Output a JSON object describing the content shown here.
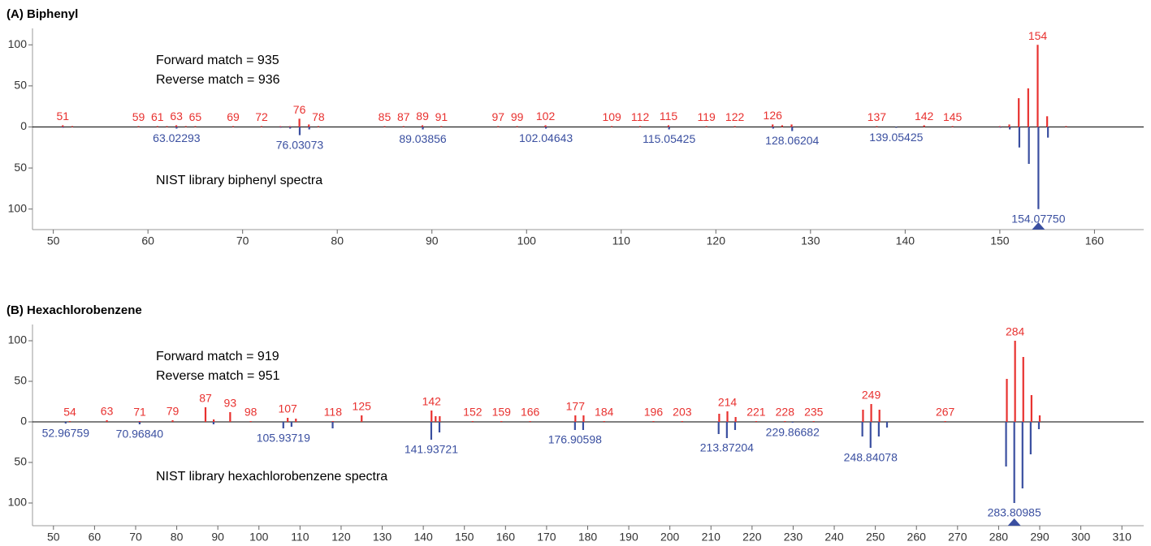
{
  "chart_data": [
    {
      "type": "mirror",
      "title": "(A) Biphenyl",
      "annotations": [
        "Forward match = 935",
        "Reverse match = 936",
        "NIST library biphenyl spectra"
      ],
      "xlim": [
        47.8,
        165.2
      ],
      "xticks": [
        50,
        60,
        70,
        80,
        90,
        100,
        110,
        120,
        130,
        140,
        150,
        160
      ],
      "ylim": [
        -125,
        120
      ],
      "yticks": [
        {
          "value": -100,
          "label": "100"
        },
        {
          "value": -50,
          "label": "50"
        },
        0,
        50,
        100
      ],
      "series": [
        {
          "color": "#e8312f",
          "x": [
            51,
            52,
            59,
            61,
            62,
            63,
            64,
            65,
            69,
            72,
            74,
            75,
            76,
            77,
            78,
            85,
            87,
            89,
            91,
            97,
            99,
            102,
            109,
            112,
            115,
            119,
            122,
            126,
            127,
            128,
            137,
            142,
            145,
            150,
            151,
            152,
            153,
            154,
            155,
            157
          ],
          "values": [
            2,
            1,
            1,
            1,
            1,
            2,
            1,
            1,
            1,
            1,
            1,
            1,
            10,
            3,
            1,
            1,
            1,
            2,
            1,
            1,
            1,
            2,
            1,
            1,
            2,
            1,
            1,
            3,
            2,
            3,
            1,
            2,
            1,
            1,
            3,
            35,
            47,
            100,
            13,
            1
          ],
          "labels": [
            "51",
            null,
            "59",
            "61",
            null,
            "63",
            null,
            "65",
            "69",
            "72",
            null,
            null,
            "76",
            null,
            "78",
            "85",
            "87",
            "89",
            "91",
            "97",
            "99",
            "102",
            "109",
            "112",
            "115",
            "119",
            "122",
            "126",
            null,
            null,
            "137",
            "142",
            "145",
            null,
            null,
            null,
            null,
            "154",
            null,
            null
          ]
        },
        {
          "color": "#3a4fa0",
          "x": [
            51.0229,
            63.02293,
            74.0151,
            75.0229,
            76.03073,
            77.0386,
            89.03856,
            102.04643,
            115.05425,
            126.0464,
            128.06204,
            139.05425,
            150.0464,
            151.0542,
            152.062,
            153.0699,
            154.0775,
            155.0853
          ],
          "values": [
            -1,
            -2,
            -1,
            -2,
            -10,
            -3,
            -3,
            -2,
            -3,
            -2,
            -5,
            -1,
            -1,
            -3,
            -25,
            -45,
            -100,
            -13
          ],
          "labels": [
            null,
            "63.02293",
            null,
            null,
            "76.03073",
            null,
            "89.03856",
            "102.04643",
            "115.05425",
            null,
            "128.06204",
            "139.05425",
            null,
            null,
            null,
            null,
            "154.07750",
            null
          ]
        }
      ]
    },
    {
      "type": "mirror",
      "title": "(B) Hexachlorobenzene",
      "annotations": [
        "Forward match = 919",
        "Reverse match = 951",
        "NIST library hexachlorobenzene spectra"
      ],
      "xlim": [
        44.9,
        315.3
      ],
      "xticks": [
        50,
        60,
        70,
        80,
        90,
        100,
        110,
        120,
        130,
        140,
        150,
        160,
        170,
        180,
        190,
        200,
        210,
        220,
        230,
        240,
        250,
        260,
        270,
        280,
        290,
        300,
        310
      ],
      "ylim": [
        -128,
        120
      ],
      "yticks": [
        {
          "value": -100,
          "label": "100"
        },
        {
          "value": -50,
          "label": "50"
        },
        0,
        50,
        100
      ],
      "series": [
        {
          "color": "#e8312f",
          "x": [
            54,
            63,
            71,
            79,
            87,
            89,
            93,
            98,
            107,
            109,
            118,
            125,
            142,
            143,
            144,
            152,
            159,
            166,
            177,
            179,
            184,
            196,
            203,
            212,
            214,
            216,
            221,
            228,
            235,
            247,
            249,
            251,
            267,
            282,
            284,
            286,
            288,
            290
          ],
          "values": [
            1,
            2,
            1,
            2,
            18,
            3,
            12,
            1,
            5,
            4,
            1,
            8,
            14,
            7,
            7,
            1,
            1,
            1,
            8,
            8,
            1,
            1,
            1,
            10,
            13,
            6,
            1,
            1,
            1,
            15,
            22,
            15,
            1,
            53,
            100,
            80,
            33,
            8
          ],
          "labels": [
            "54",
            "63",
            "71",
            "79",
            "87",
            null,
            "93",
            "98",
            "107",
            null,
            "118",
            "125",
            "142",
            null,
            null,
            "152",
            "159",
            "166",
            "177",
            null,
            "184",
            "196",
            "203",
            null,
            "214",
            null,
            "221",
            "228",
            "235",
            null,
            "249",
            null,
            "267",
            null,
            "284",
            null,
            null,
            null
          ]
        },
        {
          "color": "#3a4fa0",
          "x": [
            52.96759,
            70.9684,
            88.96,
            105.93719,
            107.93,
            117.94,
            141.93721,
            143.93,
            176.90598,
            178.9,
            211.87,
            213.87204,
            215.87,
            229.86682,
            246.84,
            248.84078,
            250.84,
            252.84,
            281.81,
            283.80985,
            285.81,
            287.8,
            289.8
          ],
          "values": [
            -2,
            -3,
            -3,
            -8,
            -6,
            -8,
            -22,
            -13,
            -10,
            -10,
            -15,
            -20,
            -10,
            -1,
            -18,
            -32,
            -18,
            -7,
            -55,
            -100,
            -82,
            -40,
            -9
          ],
          "labels": [
            "52.96759",
            "70.96840",
            null,
            "105.93719",
            null,
            null,
            "141.93721",
            null,
            "176.90598",
            null,
            null,
            "213.87204",
            null,
            "229.86682",
            null,
            "248.84078",
            null,
            null,
            null,
            "283.80985",
            null,
            null,
            null
          ]
        }
      ]
    }
  ]
}
